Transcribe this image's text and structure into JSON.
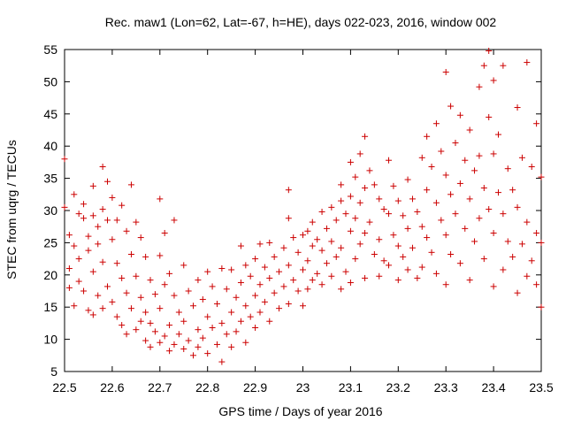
{
  "chart_data": {
    "type": "scatter",
    "title": "Rec. maw1 (Lon=62, Lat=-67, h=HE), days 022-023, 2016, window 002",
    "xlabel": "GPS time / Days of year 2016",
    "ylabel": "STEC from uqrg / TECUs",
    "xlim": [
      22.5,
      23.5
    ],
    "ylim": [
      5,
      55
    ],
    "x_ticks": [
      22.5,
      22.6,
      22.7,
      22.8,
      22.9,
      23.0,
      23.1,
      23.2,
      23.3,
      23.4,
      23.5
    ],
    "x_tick_labels": [
      "22.5",
      "22.6",
      "22.7",
      "22.8",
      "22.9",
      "23",
      "23.1",
      "23.2",
      "23.3",
      "23.4",
      "23.5"
    ],
    "y_ticks": [
      5,
      10,
      15,
      20,
      25,
      30,
      35,
      40,
      45,
      50,
      55
    ],
    "y_tick_labels": [
      "5",
      "10",
      "15",
      "20",
      "25",
      "30",
      "35",
      "40",
      "45",
      "50",
      "55"
    ],
    "grid": false,
    "marker": "+",
    "marker_color": "#cc0000",
    "series": [
      {
        "points": [
          [
            22.5,
            38.0
          ],
          [
            22.5,
            30.5
          ],
          [
            22.51,
            26.2
          ],
          [
            22.51,
            21.0
          ],
          [
            22.51,
            18.0
          ],
          [
            22.52,
            32.5
          ],
          [
            22.52,
            24.5
          ],
          [
            22.52,
            15.2
          ],
          [
            22.53,
            29.5
          ],
          [
            22.53,
            22.5
          ],
          [
            22.53,
            19.0
          ],
          [
            22.54,
            31.0
          ],
          [
            22.54,
            28.8
          ],
          [
            22.54,
            17.5
          ],
          [
            22.55,
            26.0
          ],
          [
            22.55,
            23.8
          ],
          [
            22.55,
            14.5
          ],
          [
            22.56,
            33.8
          ],
          [
            22.56,
            29.2
          ],
          [
            22.56,
            20.5
          ],
          [
            22.56,
            13.8
          ],
          [
            22.57,
            27.5
          ],
          [
            22.57,
            24.8
          ],
          [
            22.57,
            16.8
          ],
          [
            22.58,
            36.8
          ],
          [
            22.58,
            30.2
          ],
          [
            22.58,
            22.0
          ],
          [
            22.58,
            14.8
          ],
          [
            22.59,
            34.5
          ],
          [
            22.59,
            28.5
          ],
          [
            22.59,
            18.2
          ],
          [
            22.6,
            32.0
          ],
          [
            22.6,
            25.5
          ],
          [
            22.6,
            15.8
          ],
          [
            22.61,
            28.5
          ],
          [
            22.61,
            21.8
          ],
          [
            22.61,
            13.5
          ],
          [
            22.62,
            30.8
          ],
          [
            22.62,
            19.5
          ],
          [
            22.62,
            12.2
          ],
          [
            22.63,
            26.8
          ],
          [
            22.63,
            17.2
          ],
          [
            22.63,
            10.8
          ],
          [
            22.64,
            34.0
          ],
          [
            22.64,
            23.2
          ],
          [
            22.64,
            14.8
          ],
          [
            22.65,
            28.2
          ],
          [
            22.65,
            19.8
          ],
          [
            22.65,
            11.5
          ],
          [
            22.66,
            25.8
          ],
          [
            22.66,
            16.5
          ],
          [
            22.66,
            12.8
          ],
          [
            22.67,
            22.8
          ],
          [
            22.67,
            14.2
          ],
          [
            22.67,
            9.8
          ],
          [
            22.68,
            19.2
          ],
          [
            22.68,
            12.5
          ],
          [
            22.68,
            8.8
          ],
          [
            22.69,
            17.0
          ],
          [
            22.69,
            11.2
          ],
          [
            22.7,
            31.8
          ],
          [
            22.7,
            23.0
          ],
          [
            22.7,
            14.8
          ],
          [
            22.7,
            9.5
          ],
          [
            22.71,
            26.5
          ],
          [
            22.71,
            18.5
          ],
          [
            22.71,
            10.5
          ],
          [
            22.72,
            20.2
          ],
          [
            22.72,
            12.2
          ],
          [
            22.72,
            8.2
          ],
          [
            22.73,
            28.5
          ],
          [
            22.73,
            16.8
          ],
          [
            22.73,
            9.2
          ],
          [
            22.74,
            14.2
          ],
          [
            22.74,
            10.8
          ],
          [
            22.75,
            21.5
          ],
          [
            22.75,
            12.8
          ],
          [
            22.75,
            8.5
          ],
          [
            22.76,
            17.5
          ],
          [
            22.76,
            9.8
          ],
          [
            22.77,
            15.2
          ],
          [
            22.77,
            7.5
          ],
          [
            22.78,
            19.2
          ],
          [
            22.78,
            11.5
          ],
          [
            22.78,
            8.8
          ],
          [
            22.79,
            16.2
          ],
          [
            22.79,
            10.2
          ],
          [
            22.8,
            20.5
          ],
          [
            22.8,
            13.5
          ],
          [
            22.8,
            7.8
          ],
          [
            22.81,
            18.2
          ],
          [
            22.81,
            11.8
          ],
          [
            22.82,
            15.5
          ],
          [
            22.82,
            9.2
          ],
          [
            22.83,
            21.0
          ],
          [
            22.83,
            12.5
          ],
          [
            22.83,
            6.5
          ],
          [
            22.84,
            17.8
          ],
          [
            22.84,
            10.8
          ],
          [
            22.85,
            20.8
          ],
          [
            22.85,
            14.2
          ],
          [
            22.85,
            8.8
          ],
          [
            22.86,
            16.5
          ],
          [
            22.86,
            11.2
          ],
          [
            22.87,
            24.5
          ],
          [
            22.87,
            18.8
          ],
          [
            22.87,
            12.8
          ],
          [
            22.88,
            21.5
          ],
          [
            22.88,
            15.2
          ],
          [
            22.88,
            9.5
          ],
          [
            22.89,
            19.8
          ],
          [
            22.89,
            13.5
          ],
          [
            22.9,
            22.5
          ],
          [
            22.9,
            16.8
          ],
          [
            22.9,
            11.8
          ],
          [
            22.91,
            24.8
          ],
          [
            22.91,
            18.5
          ],
          [
            22.91,
            14.2
          ],
          [
            22.92,
            21.2
          ],
          [
            22.92,
            15.8
          ],
          [
            22.93,
            25.0
          ],
          [
            22.93,
            19.5
          ],
          [
            22.93,
            12.8
          ],
          [
            22.94,
            22.8
          ],
          [
            22.94,
            17.2
          ],
          [
            22.95,
            20.5
          ],
          [
            22.95,
            14.8
          ],
          [
            22.96,
            24.2
          ],
          [
            22.96,
            18.2
          ],
          [
            22.97,
            33.2
          ],
          [
            22.97,
            28.8
          ],
          [
            22.97,
            21.5
          ],
          [
            22.97,
            15.5
          ],
          [
            22.98,
            25.8
          ],
          [
            22.98,
            19.2
          ],
          [
            22.99,
            23.5
          ],
          [
            22.99,
            17.5
          ],
          [
            23.0,
            26.2
          ],
          [
            23.0,
            20.8
          ],
          [
            23.0,
            15.2
          ],
          [
            23.01,
            26.8
          ],
          [
            23.01,
            22.2
          ],
          [
            23.01,
            17.8
          ],
          [
            23.02,
            28.2
          ],
          [
            23.02,
            24.5
          ],
          [
            23.02,
            19.2
          ],
          [
            23.03,
            25.5
          ],
          [
            23.03,
            20.2
          ],
          [
            23.04,
            29.8
          ],
          [
            23.04,
            23.8
          ],
          [
            23.04,
            18.5
          ],
          [
            23.05,
            27.2
          ],
          [
            23.05,
            21.8
          ],
          [
            23.06,
            30.5
          ],
          [
            23.06,
            25.2
          ],
          [
            23.06,
            19.8
          ],
          [
            23.07,
            28.5
          ],
          [
            23.07,
            22.8
          ],
          [
            23.08,
            34.0
          ],
          [
            23.08,
            31.5
          ],
          [
            23.08,
            24.2
          ],
          [
            23.08,
            17.8
          ],
          [
            23.09,
            29.5
          ],
          [
            23.09,
            20.5
          ],
          [
            23.1,
            37.5
          ],
          [
            23.1,
            32.2
          ],
          [
            23.1,
            26.8
          ],
          [
            23.1,
            18.8
          ],
          [
            23.11,
            35.2
          ],
          [
            23.11,
            28.8
          ],
          [
            23.11,
            22.5
          ],
          [
            23.12,
            38.8
          ],
          [
            23.12,
            31.2
          ],
          [
            23.12,
            24.8
          ],
          [
            23.13,
            41.5
          ],
          [
            23.13,
            33.5
          ],
          [
            23.13,
            26.5
          ],
          [
            23.13,
            19.5
          ],
          [
            23.14,
            36.2
          ],
          [
            23.14,
            28.2
          ],
          [
            23.15,
            34.0
          ],
          [
            23.15,
            23.2
          ],
          [
            23.16,
            31.8
          ],
          [
            23.16,
            25.5
          ],
          [
            23.16,
            19.8
          ],
          [
            23.17,
            30.2
          ],
          [
            23.17,
            22.2
          ],
          [
            23.18,
            37.8
          ],
          [
            23.18,
            29.5
          ],
          [
            23.18,
            21.5
          ],
          [
            23.19,
            33.8
          ],
          [
            23.19,
            26.2
          ],
          [
            23.2,
            31.5
          ],
          [
            23.2,
            24.5
          ],
          [
            23.2,
            19.2
          ],
          [
            23.21,
            29.2
          ],
          [
            23.21,
            22.8
          ],
          [
            23.22,
            34.8
          ],
          [
            23.22,
            27.2
          ],
          [
            23.22,
            20.8
          ],
          [
            23.23,
            31.8
          ],
          [
            23.23,
            24.2
          ],
          [
            23.24,
            29.8
          ],
          [
            23.24,
            19.5
          ],
          [
            23.25,
            38.2
          ],
          [
            23.25,
            27.5
          ],
          [
            23.25,
            21.2
          ],
          [
            23.26,
            41.5
          ],
          [
            23.26,
            33.2
          ],
          [
            23.26,
            25.8
          ],
          [
            23.27,
            36.8
          ],
          [
            23.27,
            23.5
          ],
          [
            23.28,
            43.5
          ],
          [
            23.28,
            31.2
          ],
          [
            23.28,
            20.2
          ],
          [
            23.29,
            39.2
          ],
          [
            23.29,
            28.5
          ],
          [
            23.3,
            51.5
          ],
          [
            23.3,
            35.5
          ],
          [
            23.3,
            26.2
          ],
          [
            23.3,
            18.5
          ],
          [
            23.31,
            46.2
          ],
          [
            23.31,
            32.5
          ],
          [
            23.31,
            23.2
          ],
          [
            23.32,
            40.5
          ],
          [
            23.32,
            29.5
          ],
          [
            23.33,
            44.8
          ],
          [
            23.33,
            34.2
          ],
          [
            23.33,
            21.8
          ],
          [
            23.34,
            37.8
          ],
          [
            23.34,
            27.2
          ],
          [
            23.35,
            42.5
          ],
          [
            23.35,
            31.8
          ],
          [
            23.35,
            19.2
          ],
          [
            23.36,
            36.2
          ],
          [
            23.36,
            25.2
          ],
          [
            23.37,
            49.2
          ],
          [
            23.37,
            38.5
          ],
          [
            23.37,
            28.8
          ],
          [
            23.38,
            52.5
          ],
          [
            23.38,
            33.5
          ],
          [
            23.38,
            22.5
          ],
          [
            23.39,
            54.8
          ],
          [
            23.39,
            44.5
          ],
          [
            23.39,
            30.2
          ],
          [
            23.4,
            50.2
          ],
          [
            23.4,
            38.8
          ],
          [
            23.4,
            26.5
          ],
          [
            23.4,
            18.2
          ],
          [
            23.41,
            41.8
          ],
          [
            23.41,
            32.8
          ],
          [
            23.42,
            52.5
          ],
          [
            23.42,
            29.5
          ],
          [
            23.42,
            20.8
          ],
          [
            23.43,
            36.5
          ],
          [
            23.43,
            25.2
          ],
          [
            23.44,
            33.2
          ],
          [
            23.44,
            22.8
          ],
          [
            23.45,
            46.0
          ],
          [
            23.45,
            30.5
          ],
          [
            23.45,
            17.2
          ],
          [
            23.46,
            38.2
          ],
          [
            23.46,
            24.8
          ],
          [
            23.47,
            53.0
          ],
          [
            23.47,
            28.2
          ],
          [
            23.47,
            19.8
          ],
          [
            23.48,
            36.8
          ],
          [
            23.48,
            22.2
          ],
          [
            23.49,
            43.5
          ],
          [
            23.49,
            26.5
          ],
          [
            23.49,
            18.5
          ],
          [
            23.5,
            35.2
          ],
          [
            23.5,
            25.0
          ],
          [
            23.5,
            15.0
          ]
        ]
      }
    ]
  }
}
